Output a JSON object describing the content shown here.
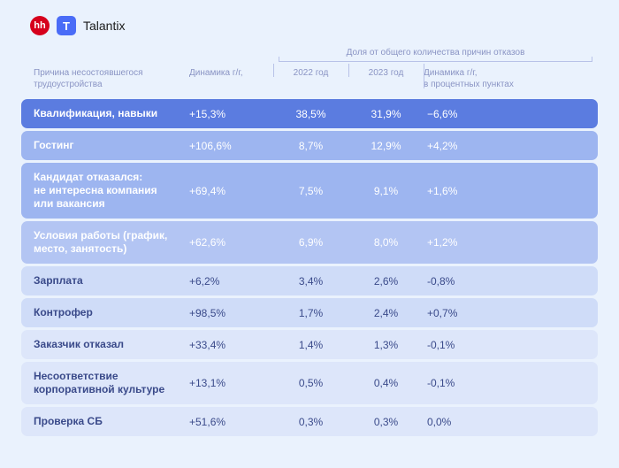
{
  "brand": {
    "hh": "hh",
    "t": "T",
    "name": "Talantix"
  },
  "superHeader": "Доля от общего количества причин отказов",
  "columns": {
    "reason": "Причина несостоявшегося трудоустройства",
    "dyn": "Динамика г/г,",
    "y2022": "2022 год",
    "y2023": "2023 год",
    "dynpp": "Динамика г/г,\nв процентных пунктах"
  },
  "palette": {
    "strong": "#5b7ce0",
    "mid": "#9db5f0",
    "midlow": "#b3c5f3",
    "light": "#cfdcf8",
    "lighter": "#dde6fa",
    "bg": "#eaf2fd",
    "headerText": "#8a94c4",
    "lightText": "#3a4a8a"
  },
  "rows": [
    {
      "label": "Квалификация, навыки",
      "dyn": "+15,3%",
      "y2022": "38,5%",
      "y2023": "31,9%",
      "pp": "−6,6%",
      "cls": "strong"
    },
    {
      "label": "Гостинг",
      "dyn": "+106,6%",
      "y2022": "8,7%",
      "y2023": "12,9%",
      "pp": "+4,2%",
      "cls": "mid"
    },
    {
      "label": "Кандидат отказался:\nне интересна компания\nили вакансия",
      "dyn": "+69,4%",
      "y2022": "7,5%",
      "y2023": "9,1%",
      "pp": "+1,6%",
      "cls": "mid",
      "size": "tall"
    },
    {
      "label": "Условия работы (график,\nместо, занятость)",
      "dyn": "+62,6%",
      "y2022": "6,9%",
      "y2023": "8,0%",
      "pp": "+1,2%",
      "cls": "midlow",
      "size": "med"
    },
    {
      "label": "Зарплата",
      "dyn": "+6,2%",
      "y2022": "3,4%",
      "y2023": "2,6%",
      "pp": "-0,8%",
      "cls": "light"
    },
    {
      "label": "Контрофер",
      "dyn": "+98,5%",
      "y2022": "1,7%",
      "y2023": "2,4%",
      "pp": "+0,7%",
      "cls": "light"
    },
    {
      "label": "Заказчик отказал",
      "dyn": "+33,4%",
      "y2022": "1,4%",
      "y2023": "1,3%",
      "pp": "-0,1%",
      "cls": "lighter"
    },
    {
      "label": "Несоответствие\nкорпоративной культуре",
      "dyn": "+13,1%",
      "y2022": "0,5%",
      "y2023": "0,4%",
      "pp": "-0,1%",
      "cls": "lighter",
      "size": "med"
    },
    {
      "label": "Проверка СБ",
      "dyn": "+51,6%",
      "y2022": "0,3%",
      "y2023": "0,3%",
      "pp": "0,0%",
      "cls": "lighter"
    }
  ]
}
